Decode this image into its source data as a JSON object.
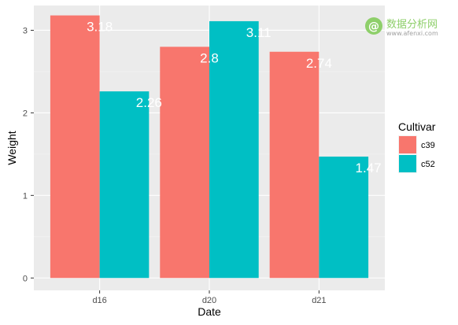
{
  "chart_data": {
    "type": "bar",
    "categories": [
      "d16",
      "d20",
      "d21"
    ],
    "series": [
      {
        "name": "c39",
        "values": [
          3.18,
          2.8,
          2.74
        ],
        "labels": [
          "3.18",
          "2.8",
          "2.74"
        ],
        "color": "#f8766d"
      },
      {
        "name": "c52",
        "values": [
          2.26,
          3.11,
          1.47
        ],
        "labels": [
          "2.26",
          "3.11",
          "1.47"
        ],
        "color": "#00bfc4"
      }
    ],
    "xlabel": "Date",
    "ylabel": "Weight",
    "ylim": [
      -0.15,
      3.3
    ],
    "yticks": [
      0,
      1,
      2,
      3
    ],
    "ytick_labels": [
      "0",
      "1",
      "2",
      "3"
    ],
    "legend_title": "Cultivar",
    "legend_position": "right",
    "grid": true,
    "panel_color": "#ebebeb"
  },
  "watermark": {
    "text": "数据分析网",
    "subtext": "www.afenxi.com",
    "logo_glyph": "@"
  }
}
